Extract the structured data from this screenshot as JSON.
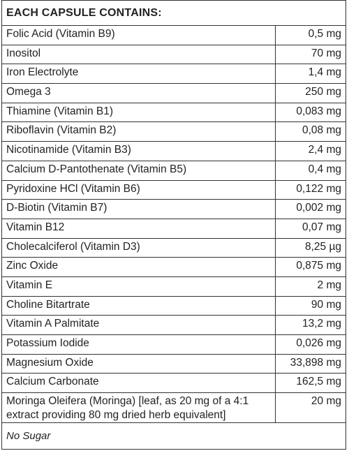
{
  "header": {
    "title": "EACH CAPSULE CONTAINS:"
  },
  "table": {
    "rows": [
      [
        "Folic Acid (Vitamin B9)",
        "0,5 mg"
      ],
      [
        "Inositol",
        "70 mg"
      ],
      [
        "Iron Electrolyte",
        "1,4 mg"
      ],
      [
        "Omega 3",
        "250 mg"
      ],
      [
        "Thiamine (Vitamin B1)",
        "0,083 mg"
      ],
      [
        "Riboflavin (Vitamin B2)",
        "0,08 mg"
      ],
      [
        "Nicotinamide (Vitamin B3)",
        "2,4 mg"
      ],
      [
        "Calcium D-Pantothenate (Vitamin B5)",
        "0,4 mg"
      ],
      [
        "Pyridoxine HCl (Vitamin B6)",
        "0,122 mg"
      ],
      [
        "D-Biotin (Vitamin B7)",
        "0,002 mg"
      ],
      [
        "Vitamin B12",
        "0,07 mg"
      ],
      [
        "Cholecalciferol (Vitamin D3)",
        "8,25 µg"
      ],
      [
        "Zinc Oxide",
        "0,875 mg"
      ],
      [
        "Vitamin E",
        "2 mg"
      ],
      [
        "Choline Bitartrate",
        "90 mg"
      ],
      [
        "Vitamin A Palmitate",
        "13,2 mg"
      ],
      [
        "Potassium Iodide",
        "0,026 mg"
      ],
      [
        "Magnesium Oxide",
        "33,898 mg"
      ],
      [
        "Calcium Carbonate",
        "162,5 mg"
      ],
      [
        "Moringa Oleifera (Moringa) [leaf, as 20 mg of a 4:1 extract providing 80 mg dried herb equivalent]",
        "20 mg"
      ]
    ]
  },
  "footer": {
    "note": "No Sugar"
  }
}
